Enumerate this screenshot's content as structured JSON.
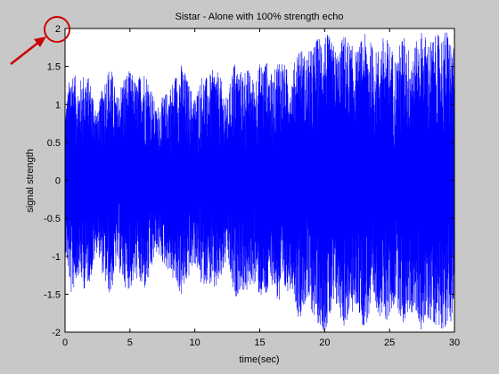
{
  "chart_data": {
    "type": "line",
    "title": "Sistar - Alone with 100% strength echo",
    "xlabel": "time(sec)",
    "ylabel": "signal strength",
    "xlim": [
      0,
      30
    ],
    "ylim": [
      -2,
      2
    ],
    "x_ticks": [
      0,
      5,
      10,
      15,
      20,
      25,
      30
    ],
    "y_ticks": [
      -2,
      -1.5,
      -1,
      -0.5,
      0,
      0.5,
      1,
      1.5,
      2
    ],
    "x_tick_labels": [
      "0",
      "5",
      "10",
      "15",
      "20",
      "25",
      "30"
    ],
    "y_tick_labels": [
      "-2",
      "-1.5",
      "-1",
      "-0.5",
      "0",
      "0.5",
      "1",
      "1.5",
      "2"
    ],
    "grid": false,
    "series": [
      {
        "color": "#0000ff",
        "envelope_x": [
          0,
          0.5,
          1,
          1.5,
          2,
          2.5,
          3,
          3.5,
          4,
          4.5,
          5,
          5.5,
          6,
          6.5,
          7,
          7.5,
          8,
          8.5,
          9,
          9.5,
          10,
          10.5,
          11,
          11.5,
          12,
          12.5,
          13,
          13.5,
          14,
          14.5,
          15,
          15.5,
          16,
          16.5,
          17,
          17.5,
          18,
          18.5,
          19,
          19.5,
          20,
          20.5,
          21,
          21.5,
          22,
          22.5,
          23,
          23.5,
          24,
          24.5,
          25,
          25.5,
          26,
          26.5,
          27,
          27.5,
          28,
          28.5,
          29,
          29.5,
          30
        ],
        "envelope_y": [
          0.95,
          1.55,
          1.25,
          1.45,
          1.3,
          0.9,
          1.35,
          1.55,
          1.1,
          1.4,
          1.45,
          1.3,
          1.5,
          1.35,
          0.95,
          1.1,
          1.2,
          1.4,
          1.55,
          1.3,
          1.1,
          1.4,
          1.35,
          1.5,
          1.35,
          1.05,
          1.6,
          1.45,
          1.5,
          1.35,
          1.55,
          1.6,
          1.35,
          1.7,
          1.5,
          1.4,
          1.85,
          1.65,
          1.75,
          1.9,
          2.0,
          1.85,
          1.7,
          1.95,
          1.8,
          1.7,
          1.95,
          1.85,
          1.7,
          1.9,
          1.85,
          1.6,
          1.95,
          1.75,
          1.8,
          2.0,
          1.85,
          1.9,
          1.95,
          2.0,
          1.7
        ]
      }
    ],
    "annotation": {
      "type": "circle-and-arrow",
      "target_y_tick": "2",
      "color": "#cc0000"
    }
  }
}
